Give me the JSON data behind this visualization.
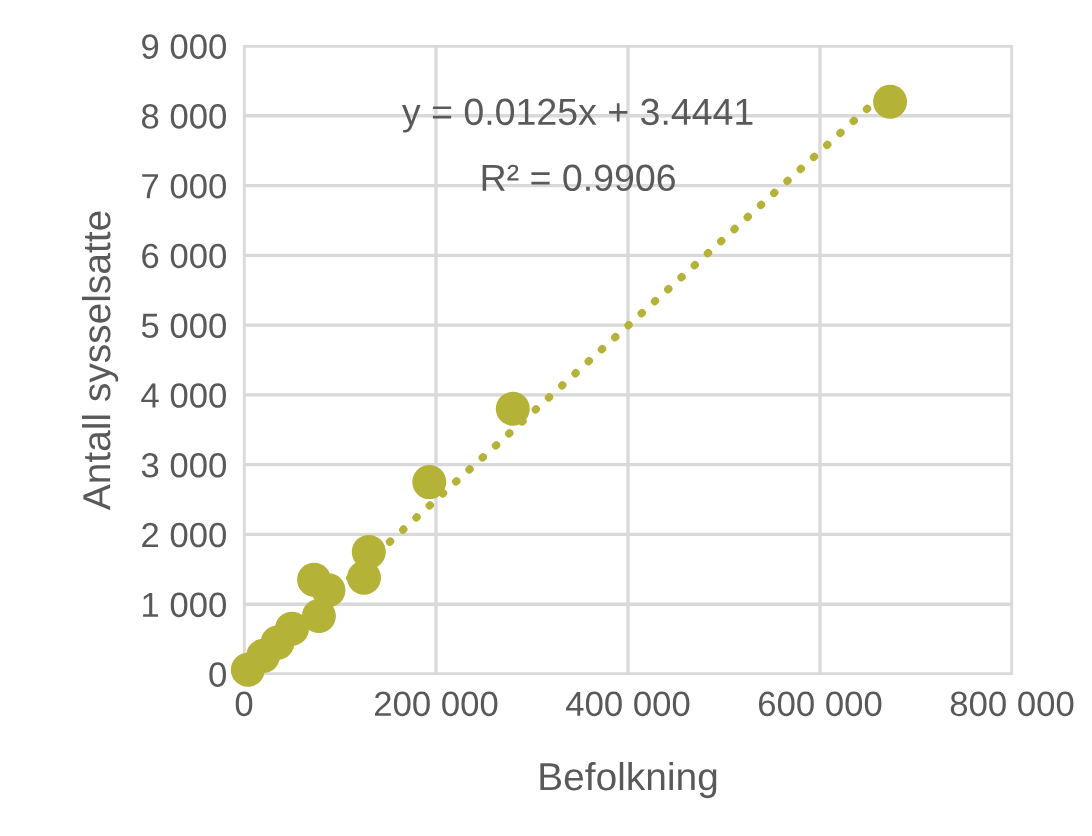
{
  "chart_data": {
    "type": "scatter",
    "xlabel": "Befolkning",
    "ylabel": "Antall sysselsatte",
    "xlim": [
      0,
      800000
    ],
    "ylim": [
      0,
      9000
    ],
    "xticks": [
      {
        "value": 0,
        "label": "0"
      },
      {
        "value": 200000,
        "label": "200 000"
      },
      {
        "value": 400000,
        "label": "400 000"
      },
      {
        "value": 600000,
        "label": "600 000"
      },
      {
        "value": 800000,
        "label": "800 000"
      }
    ],
    "yticks": [
      {
        "value": 0,
        "label": "0"
      },
      {
        "value": 1000,
        "label": "1 000"
      },
      {
        "value": 2000,
        "label": "2 000"
      },
      {
        "value": 3000,
        "label": "3 000"
      },
      {
        "value": 4000,
        "label": "4 000"
      },
      {
        "value": 5000,
        "label": "5 000"
      },
      {
        "value": 6000,
        "label": "6 000"
      },
      {
        "value": 7000,
        "label": "7 000"
      },
      {
        "value": 8000,
        "label": "8 000"
      },
      {
        "value": 9000,
        "label": "9 000"
      }
    ],
    "grid": true,
    "marker": "circle",
    "series": [
      {
        "color": "#b5b238",
        "x": [
          673000,
          280000,
          193000,
          130000,
          125000,
          73000,
          88000,
          78000,
          50000,
          35000,
          20000,
          4000
        ],
        "values": [
          8200,
          3800,
          2750,
          1750,
          1380,
          1350,
          1200,
          830,
          650,
          450,
          260,
          60
        ]
      },
      {
        "type": "line",
        "line_style": "dotted",
        "marker": "none",
        "color": "#b5b238",
        "x": [
          0,
          673000
        ],
        "values": [
          0,
          8400
        ]
      }
    ],
    "annotations": [
      "y = 0.0125x + 3.4441",
      "R² = 0.9906"
    ]
  }
}
